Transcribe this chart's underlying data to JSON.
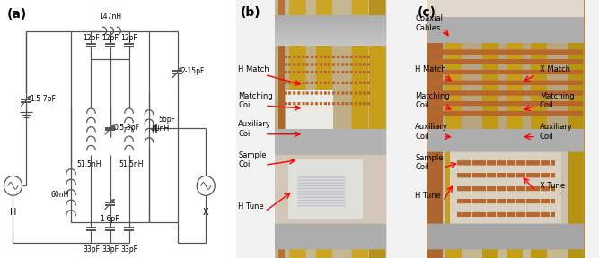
{
  "panel_a_label": "(a)",
  "panel_b_label": "(b)",
  "panel_c_label": "(c)",
  "bg_color": "#ffffff",
  "circuit_color": "#555555",
  "text_color": "#000000",
  "red_arrow_color": "#cc0000",
  "photo_bg": "#e8e0d0",
  "flange_color": "#b0b0b0",
  "gold_color": "#c8a840",
  "copper_color": "#b87333",
  "silver_color": "#a8a8a8",
  "white_ceramic": "#f0f0f0",
  "labels_b": [
    "H Match",
    "Matching\nCoil",
    "Auxiliary\nCoil",
    "Sample\nCoil",
    "H Tune"
  ],
  "labels_c_left": [
    "Coaxial\nCables",
    "H Match",
    "Matching\nCoil",
    "Auxiliary\nCoil",
    "Sample\nCoil",
    "H Tune"
  ],
  "labels_c_right": [
    "X Match",
    "Matching\nCoil",
    "Auxiliary\nCoil",
    "X Tune"
  ]
}
